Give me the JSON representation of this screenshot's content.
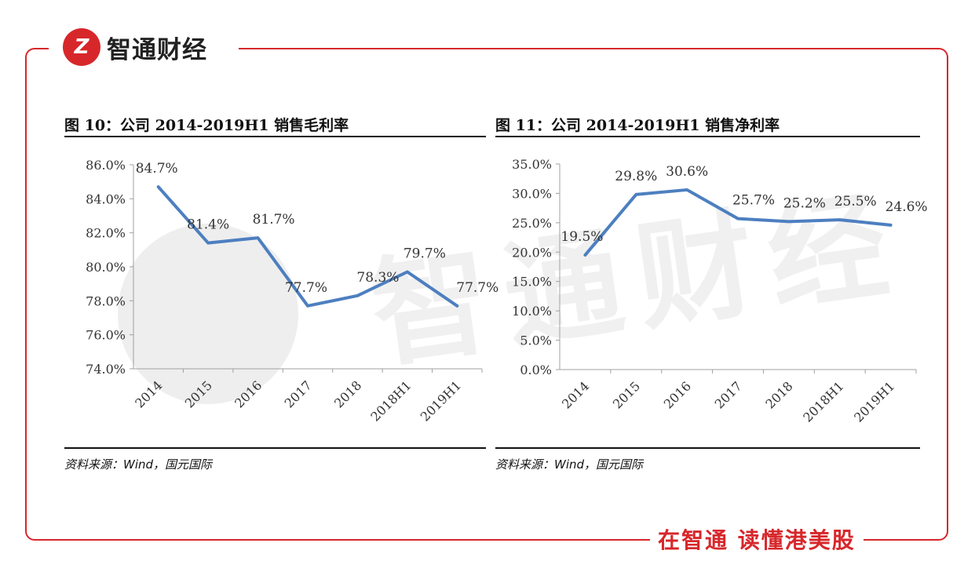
{
  "header": {
    "logo_mark": "Z",
    "brand_name": "智通财经"
  },
  "footer": {
    "slogan": "在智通 读懂港美股"
  },
  "colors": {
    "accent": "#d7272b",
    "series": "#4d7fc0",
    "axis": "#999999",
    "text": "#222222"
  },
  "figures": [
    {
      "title": "图 10：公司 2014-2019H1 销售毛利率",
      "source": "资料来源：Wind，国元国际"
    },
    {
      "title": "图 11：公司 2014-2019H1 销售净利率",
      "source": "资料来源：Wind，国元国际"
    }
  ],
  "chart_data": [
    {
      "type": "line",
      "title": "图 10：公司 2014-2019H1 销售毛利率",
      "categories": [
        "2014",
        "2015",
        "2016",
        "2017",
        "2018",
        "2018H1",
        "2019H1"
      ],
      "values": [
        84.7,
        81.4,
        81.7,
        77.7,
        78.3,
        79.7,
        77.7
      ],
      "data_labels": [
        "84.7%",
        "81.4%",
        "81.7%",
        "77.7%",
        "78.3%",
        "79.7%",
        "77.7%"
      ],
      "ylim": [
        74,
        86
      ],
      "yticks": [
        "74.0%",
        "76.0%",
        "78.0%",
        "80.0%",
        "82.0%",
        "84.0%",
        "86.0%"
      ],
      "grid": false,
      "legend": "none"
    },
    {
      "type": "line",
      "title": "图 11：公司 2014-2019H1 销售净利率",
      "categories": [
        "2014",
        "2015",
        "2016",
        "2017",
        "2018",
        "2018H1",
        "2019H1"
      ],
      "values": [
        19.5,
        29.8,
        30.6,
        25.7,
        25.2,
        25.5,
        24.6
      ],
      "data_labels": [
        "19.5%",
        "29.8%",
        "30.6%",
        "25.7%",
        "25.2%",
        "25.5%",
        "24.6%"
      ],
      "ylim": [
        0,
        35
      ],
      "yticks": [
        "0.0%",
        "5.0%",
        "10.0%",
        "15.0%",
        "20.0%",
        "25.0%",
        "30.0%",
        "35.0%"
      ],
      "grid": false,
      "legend": "none"
    }
  ]
}
